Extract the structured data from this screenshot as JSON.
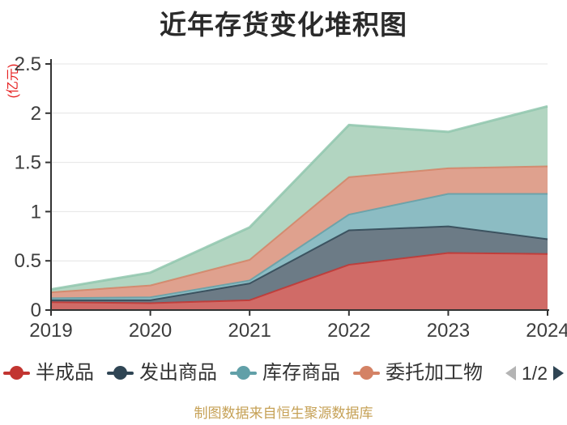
{
  "title": "近年存货变化堆积图",
  "y_axis": {
    "name": "(亿元)",
    "name_color": "#e62222",
    "ticks": [
      "0",
      "0.5",
      "1",
      "1.5",
      "2",
      "2.5"
    ],
    "tick_values": [
      0,
      0.5,
      1,
      1.5,
      2,
      2.5
    ]
  },
  "x_axis": {
    "labels": [
      "2019",
      "2020",
      "2021",
      "2022",
      "2023",
      "2024"
    ]
  },
  "chart_data": {
    "type": "area",
    "stacked": true,
    "x": [
      2019,
      2020,
      2021,
      2022,
      2023,
      2024
    ],
    "series": [
      {
        "name": "半成品",
        "color": "#c23531",
        "fill": "#d06b67",
        "values": [
          0.08,
          0.07,
          0.1,
          0.46,
          0.58,
          0.57
        ]
      },
      {
        "name": "发出商品",
        "color": "#2f4554",
        "fill": "#6c7b86",
        "values": [
          0.02,
          0.03,
          0.17,
          0.35,
          0.27,
          0.15
        ]
      },
      {
        "name": "库存商品",
        "color": "#61a0a8",
        "fill": "#8cbcc3",
        "values": [
          0.02,
          0.03,
          0.03,
          0.16,
          0.33,
          0.46
        ]
      },
      {
        "name": "委托加工物",
        "color": "#d48265",
        "fill": "#dfa18e",
        "values": [
          0.06,
          0.12,
          0.21,
          0.38,
          0.26,
          0.28
        ]
      },
      {
        "name": "",
        "color": "#91c7ae",
        "fill": "#b2d5c1",
        "values": [
          0.03,
          0.13,
          0.33,
          0.53,
          0.37,
          0.61
        ]
      }
    ],
    "title": "近年存货变化堆积图",
    "xlabel": "",
    "ylabel": "(亿元)",
    "ylim": [
      0,
      2.5
    ],
    "grid": true,
    "legend_position": "bottom"
  },
  "legend": {
    "items": [
      {
        "label": "半成品",
        "color": "#c23531"
      },
      {
        "label": "发出商品",
        "color": "#2f4554"
      },
      {
        "label": "库存商品",
        "color": "#61a0a8"
      },
      {
        "label": "委托加工物",
        "color": "#d48265"
      }
    ],
    "pager": {
      "text": "1/2"
    }
  },
  "footer": {
    "text": "制图数据来自恒生聚源数据库",
    "color": "#c6a156"
  }
}
